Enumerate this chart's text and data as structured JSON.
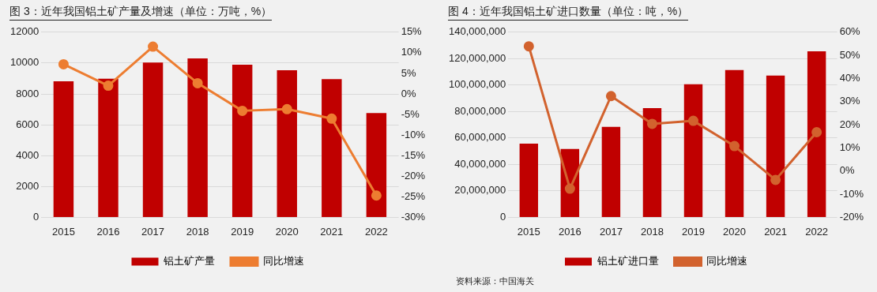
{
  "chart_data": [
    {
      "type": "bar",
      "title": "图 3：近年我国铝土矿产量及增速（单位：万吨，%）",
      "categories": [
        "2015",
        "2016",
        "2017",
        "2018",
        "2019",
        "2020",
        "2021",
        "2022"
      ],
      "series": [
        {
          "name": "铝土矿产量",
          "color": "#c00000",
          "values": [
            8820,
            8980,
            10030,
            10300,
            9890,
            9540,
            8960,
            6760
          ]
        },
        {
          "name": "同比增速",
          "type": "line",
          "axis": "y2",
          "color": "#ed7d31",
          "values": [
            7.2,
            2.0,
            11.5,
            2.6,
            -4.1,
            -3.7,
            -6.0,
            -24.7
          ]
        }
      ],
      "ylim": [
        0,
        12000
      ],
      "yticks": [
        0,
        2000,
        4000,
        6000,
        8000,
        10000,
        12000
      ],
      "y2lim": [
        -30,
        15
      ],
      "y2ticks": [
        {
          "value": -30,
          "label": "-30%"
        },
        {
          "value": -25,
          "label": "-25%"
        },
        {
          "value": -20,
          "label": "-20%"
        },
        {
          "value": -15,
          "label": "-15%"
        },
        {
          "value": -10,
          "label": "-10%"
        },
        {
          "value": -5,
          "label": "-5%"
        },
        {
          "value": 0,
          "label": "0%"
        },
        {
          "value": 5,
          "label": "5%"
        },
        {
          "value": 10,
          "label": "10%"
        },
        {
          "value": 15,
          "label": "15%"
        }
      ],
      "grid": "y",
      "legend": "bottom",
      "marker": "circle",
      "line_style": "solid"
    },
    {
      "type": "bar",
      "title": "图 4：近年我国铝土矿进口数量（单位：吨，%）",
      "categories": [
        "2015",
        "2016",
        "2017",
        "2018",
        "2019",
        "2020",
        "2021",
        "2022"
      ],
      "series": [
        {
          "name": "铝土矿进口量",
          "color": "#c00000",
          "values": [
            55700000,
            51700000,
            68400000,
            82600000,
            100700000,
            111400000,
            107200000,
            125500000
          ]
        },
        {
          "name": "同比增速",
          "type": "line",
          "axis": "y2",
          "color": "#d2622e",
          "values": [
            53.9,
            -7.6,
            32.4,
            20.4,
            21.7,
            10.8,
            -3.8,
            16.8
          ]
        }
      ],
      "ylim": [
        0,
        140000000
      ],
      "yticks": [
        0,
        {
          "value": 20000000,
          "label": "20,000,000"
        },
        {
          "value": 40000000,
          "label": "40,000,000"
        },
        {
          "value": 60000000,
          "label": "60,000,000"
        },
        {
          "value": 80000000,
          "label": "80,000,000"
        },
        {
          "value": 100000000,
          "label": "100,000,000"
        },
        {
          "value": 120000000,
          "label": "120,000,000"
        },
        {
          "value": 140000000,
          "label": "140,000,000"
        }
      ],
      "y2lim": [
        -20,
        60
      ],
      "y2ticks": [
        {
          "value": -20,
          "label": "-20%"
        },
        {
          "value": -10,
          "label": "-10%"
        },
        {
          "value": 0,
          "label": "0%"
        },
        {
          "value": 10,
          "label": "10%"
        },
        {
          "value": 20,
          "label": "20%"
        },
        {
          "value": 30,
          "label": "30%"
        },
        {
          "value": 40,
          "label": "40%"
        },
        {
          "value": 50,
          "label": "50%"
        },
        {
          "value": 60,
          "label": "60%"
        }
      ],
      "grid": "y",
      "legend": "bottom",
      "marker": "circle",
      "line_style": "solid",
      "annotations": [
        "资料来源：中国海关"
      ]
    }
  ]
}
